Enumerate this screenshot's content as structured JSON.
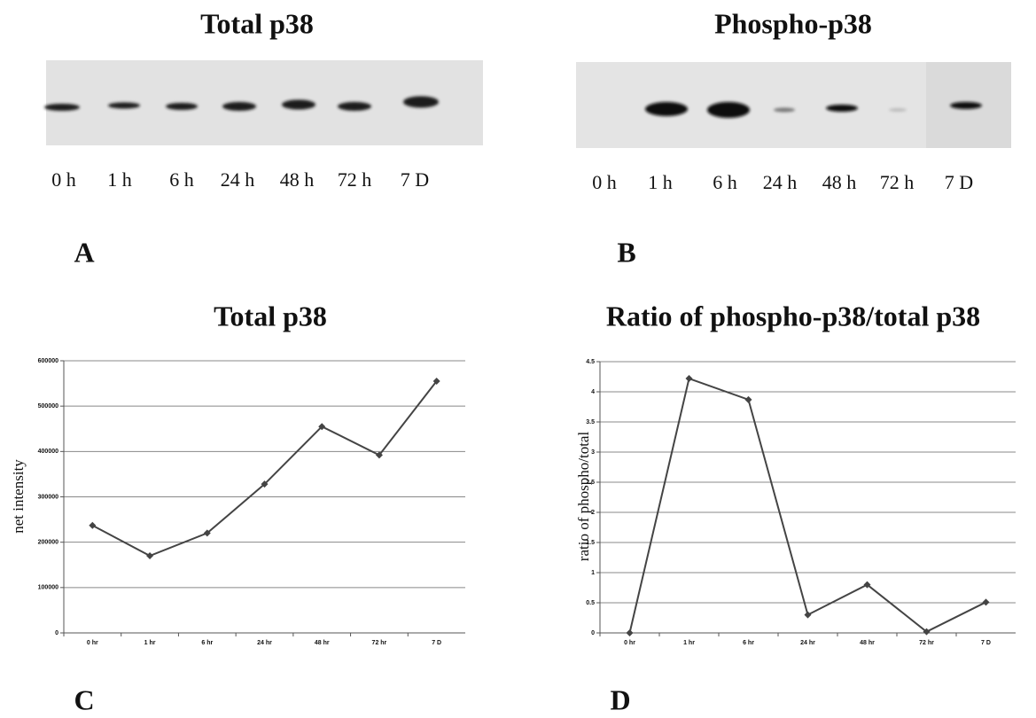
{
  "blots": [
    {
      "title": "Total p38",
      "panel": "A",
      "lanes": [
        "0 h",
        "1 h",
        "6 h",
        "24 h",
        "48 h",
        "72 h",
        "7 D"
      ]
    },
    {
      "title": "Phospho-p38",
      "panel": "B",
      "lanes": [
        "0 h",
        "1 h",
        "6 h",
        "24 h",
        "48 h",
        "72 h",
        "7 D"
      ]
    }
  ],
  "chart_data": [
    {
      "type": "line",
      "title": "Total p38",
      "panel": "C",
      "y_label": "net intensity",
      "categories": [
        "0 hr",
        "1 hr",
        "6 hr",
        "24 hr",
        "48 hr",
        "72 hr",
        "7 D"
      ],
      "values": [
        237000,
        170000,
        220000,
        328000,
        455000,
        392000,
        555000
      ],
      "color": "#444444",
      "ylim": [
        0,
        600000
      ],
      "yticks": [
        0,
        100000,
        200000,
        300000,
        400000,
        500000,
        600000
      ],
      "grid": true
    },
    {
      "type": "line",
      "title": "Ratio of phospho-p38/total p38",
      "panel": "D",
      "y_label": "ratio of phospho/total",
      "categories": [
        "0 hr",
        "1 hr",
        "6 hr",
        "24 hr",
        "48 hr",
        "72 hr",
        "7 D"
      ],
      "values": [
        0,
        4.22,
        3.87,
        0.3,
        0.8,
        0.02,
        0.51
      ],
      "color": "#444444",
      "ylim": [
        0,
        4.5
      ],
      "yticks": [
        0,
        0.5,
        1,
        1.5,
        2,
        2.5,
        3,
        3.5,
        4,
        4.5
      ],
      "grid": true
    }
  ]
}
